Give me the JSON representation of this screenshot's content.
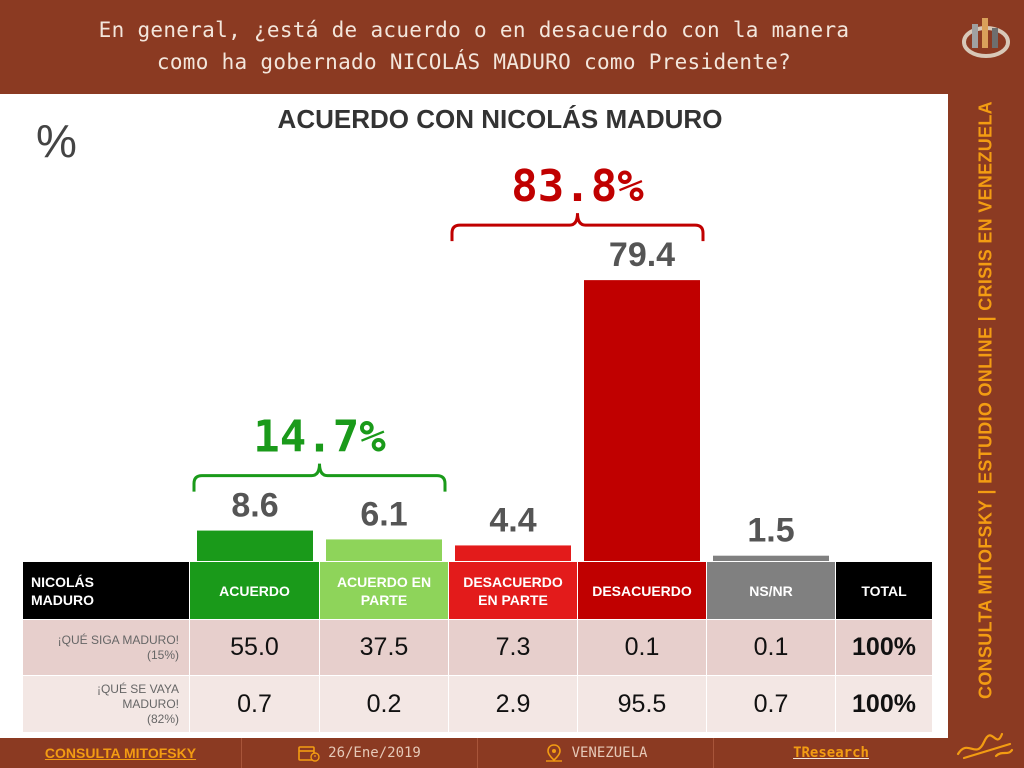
{
  "question": [
    "En general, ¿está de acuerdo o en desacuerdo con la manera",
    "como ha gobernado NICOLÁS MADURO como Presidente?"
  ],
  "sidebar_text": "CONSULTA MITOFSKY | ESTUDIO ONLINE | CRISIS EN VENEZUELA",
  "percent_sign": "%",
  "footer": {
    "brand": "CONSULTA MITOFSKY",
    "date": "26/Ene/2019",
    "country": "VENEZUELA",
    "tr_bold": "TR",
    "tr_rest": "esearch"
  },
  "chart_data": {
    "type": "bar",
    "title": "ACUERDO CON NICOLÁS MADURO",
    "categories": [
      "ACUERDO",
      "ACUERDO EN PARTE",
      "DESACUERDO EN PARTE",
      "DESACUERDO",
      "NS/NR"
    ],
    "values": [
      8.6,
      6.1,
      4.4,
      79.4,
      1.5
    ],
    "value_labels": [
      "8.6",
      "6.1",
      "4.4",
      "79.4",
      "1.5"
    ],
    "colors": [
      "#1a9a1a",
      "#8ed45a",
      "#e31b1b",
      "#c00000",
      "#808080"
    ],
    "ylim": [
      0,
      80
    ],
    "groups": [
      {
        "label": "14.7%",
        "from": 0,
        "to": 1,
        "color": "#1a9a1a"
      },
      {
        "label": "83.8%",
        "from": 2,
        "to": 3,
        "color": "#c00000"
      }
    ]
  },
  "table": {
    "corner": [
      "NICOLÁS",
      "MADURO"
    ],
    "headers": [
      {
        "lines": [
          "ACUERDO"
        ],
        "color": "#1a9a1a"
      },
      {
        "lines": [
          "ACUERDO EN",
          "PARTE"
        ],
        "color": "#8ed45a"
      },
      {
        "lines": [
          "DESACUERDO",
          "EN PARTE"
        ],
        "color": "#e31b1b"
      },
      {
        "lines": [
          "DESACUERDO"
        ],
        "color": "#c00000"
      },
      {
        "lines": [
          "NS/NR"
        ],
        "color": "#808080"
      }
    ],
    "total_header": "TOTAL",
    "rows": [
      {
        "label": [
          "¡QUÉ SIGA MADURO!",
          "(15%)"
        ],
        "values": [
          "55.0",
          "37.5",
          "7.3",
          "0.1",
          "0.1"
        ],
        "total": "100%"
      },
      {
        "label": [
          "¡QUÉ SE VAYA",
          "MADURO!",
          "(82%)"
        ],
        "values": [
          "0.7",
          "0.2",
          "2.9",
          "95.5",
          "0.7"
        ],
        "total": "100%"
      }
    ]
  }
}
